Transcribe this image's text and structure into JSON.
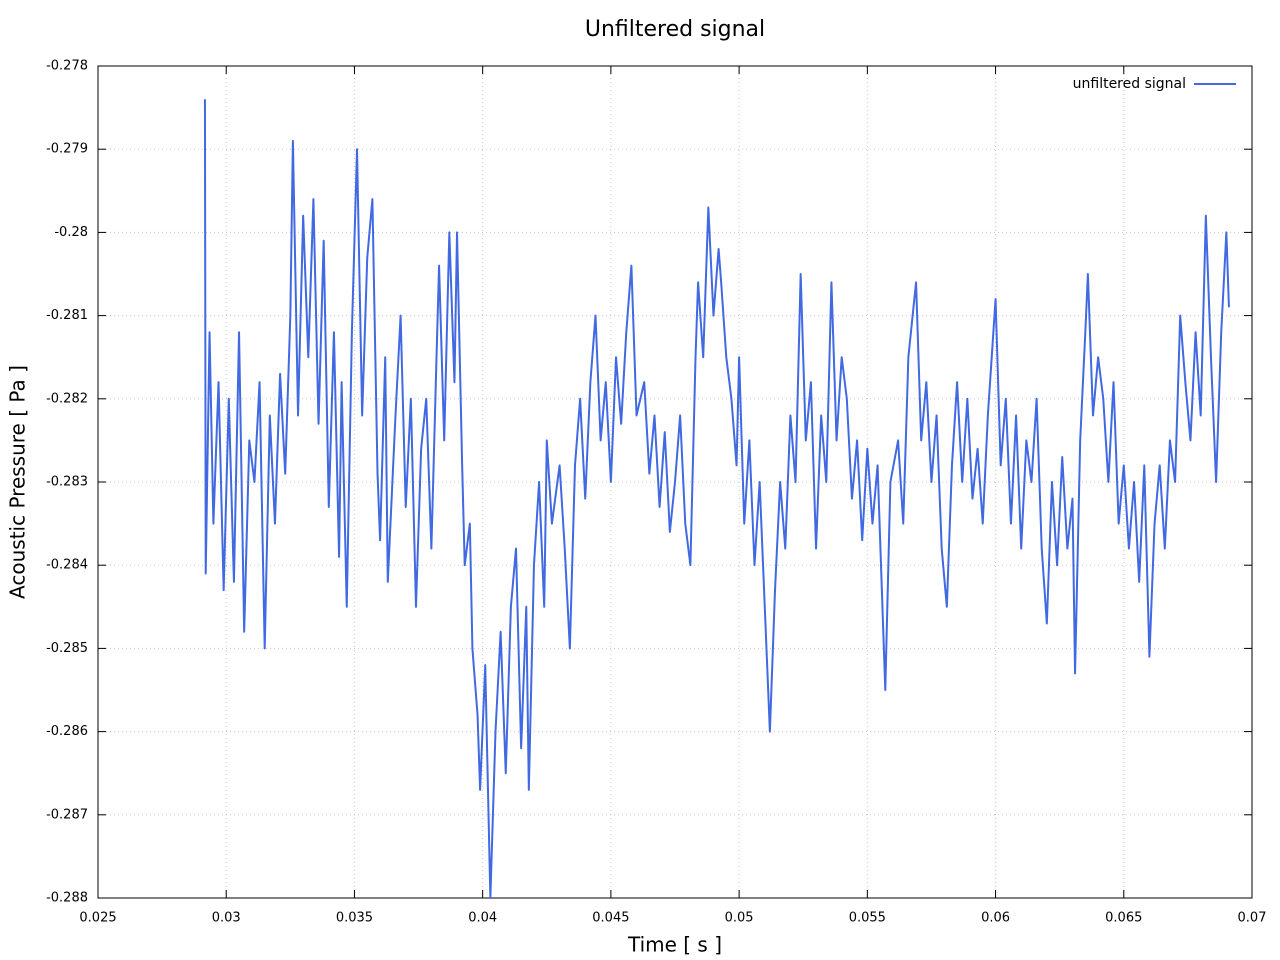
{
  "chart_data": {
    "type": "line",
    "title": "Unfiltered signal",
    "x_label": "Time [ s ]",
    "y_label": "Acoustic Pressure [ Pa ]",
    "xlim": [
      0.025,
      0.07
    ],
    "xticks": [
      0.025,
      0.03,
      0.035,
      0.04,
      0.045,
      0.05,
      0.055,
      0.06,
      0.065,
      0.07
    ],
    "ylim": [
      -0.288,
      -0.278
    ],
    "yticks": [
      -0.278,
      -0.279,
      -0.28,
      -0.281,
      -0.282,
      -0.283,
      -0.284,
      -0.285,
      -0.286,
      -0.287,
      -0.288
    ],
    "grid": true,
    "legend": "top right",
    "x": [
      0.02917,
      0.0292,
      0.02935,
      0.0295,
      0.0297,
      0.0299,
      0.0301,
      0.0303,
      0.0305,
      0.0307,
      0.0309,
      0.0311,
      0.0313,
      0.0315,
      0.0317,
      0.0319,
      0.0321,
      0.0323,
      0.0325,
      0.0326,
      0.0328,
      0.033,
      0.0332,
      0.0334,
      0.0336,
      0.0338,
      0.034,
      0.0342,
      0.0344,
      0.0345,
      0.0347,
      0.0349,
      0.0351,
      0.0353,
      0.0355,
      0.0357,
      0.0359,
      0.036,
      0.0362,
      0.0363,
      0.0366,
      0.0368,
      0.037,
      0.0372,
      0.0374,
      0.0376,
      0.0378,
      0.038,
      0.0382,
      0.0383,
      0.0385,
      0.0387,
      0.0389,
      0.039,
      0.0392,
      0.0393,
      0.0395,
      0.0396,
      0.0398,
      0.0399,
      0.0401,
      0.0403,
      0.0405,
      0.0407,
      0.0409,
      0.0411,
      0.0413,
      0.0415,
      0.0417,
      0.0418,
      0.042,
      0.0422,
      0.0424,
      0.0425,
      0.0427,
      0.043,
      0.0432,
      0.0434,
      0.0436,
      0.0438,
      0.044,
      0.0442,
      0.0444,
      0.0446,
      0.0448,
      0.045,
      0.0452,
      0.0454,
      0.0456,
      0.0458,
      0.046,
      0.0463,
      0.0465,
      0.0467,
      0.0469,
      0.0471,
      0.0473,
      0.0475,
      0.0477,
      0.0479,
      0.0481,
      0.0483,
      0.0484,
      0.0486,
      0.0488,
      0.049,
      0.0492,
      0.0493,
      0.0495,
      0.0497,
      0.0499,
      0.05,
      0.0502,
      0.0504,
      0.0506,
      0.0508,
      0.051,
      0.0512,
      0.0514,
      0.0516,
      0.0518,
      0.052,
      0.0522,
      0.0524,
      0.0526,
      0.0528,
      0.053,
      0.0532,
      0.0534,
      0.0536,
      0.0538,
      0.054,
      0.0542,
      0.0544,
      0.0546,
      0.0548,
      0.055,
      0.0552,
      0.0554,
      0.0557,
      0.0559,
      0.0562,
      0.0564,
      0.0566,
      0.0569,
      0.0571,
      0.0573,
      0.0575,
      0.0577,
      0.0579,
      0.0581,
      0.0583,
      0.0585,
      0.0587,
      0.0589,
      0.0591,
      0.0593,
      0.0595,
      0.0597,
      0.06,
      0.0602,
      0.0604,
      0.0606,
      0.0608,
      0.061,
      0.0612,
      0.0614,
      0.0616,
      0.0618,
      0.062,
      0.0622,
      0.0624,
      0.0626,
      0.0628,
      0.063,
      0.0631,
      0.0633,
      0.0635,
      0.0636,
      0.0638,
      0.064,
      0.0642,
      0.0644,
      0.0646,
      0.0648,
      0.065,
      0.0652,
      0.0654,
      0.0656,
      0.0658,
      0.066,
      0.0662,
      0.0664,
      0.0666,
      0.0668,
      0.067,
      0.0672,
      0.0674,
      0.0676,
      0.0678,
      0.068,
      0.0682,
      0.0684,
      0.0686,
      0.0688,
      0.069,
      0.0691
    ],
    "series": [
      {
        "name": "unfiltered signal",
        "color": "#4169e1",
        "values": [
          -0.2784,
          -0.2841,
          -0.2812,
          -0.2835,
          -0.2818,
          -0.2843,
          -0.282,
          -0.2842,
          -0.2812,
          -0.2848,
          -0.2825,
          -0.283,
          -0.2818,
          -0.285,
          -0.2822,
          -0.2835,
          -0.2817,
          -0.2829,
          -0.281,
          -0.2789,
          -0.2822,
          -0.2798,
          -0.2815,
          -0.2796,
          -0.2823,
          -0.2801,
          -0.2833,
          -0.2812,
          -0.2839,
          -0.2818,
          -0.2845,
          -0.2812,
          -0.279,
          -0.2822,
          -0.2803,
          -0.2796,
          -0.2829,
          -0.2837,
          -0.2815,
          -0.2842,
          -0.2822,
          -0.281,
          -0.2833,
          -0.282,
          -0.2845,
          -0.2826,
          -0.282,
          -0.2838,
          -0.2815,
          -0.2804,
          -0.2825,
          -0.28,
          -0.2818,
          -0.28,
          -0.2828,
          -0.284,
          -0.2835,
          -0.285,
          -0.2858,
          -0.2867,
          -0.2852,
          -0.288,
          -0.286,
          -0.2848,
          -0.2865,
          -0.2845,
          -0.2838,
          -0.2862,
          -0.2845,
          -0.2867,
          -0.284,
          -0.283,
          -0.2845,
          -0.2825,
          -0.2835,
          -0.2828,
          -0.2838,
          -0.285,
          -0.2828,
          -0.282,
          -0.2832,
          -0.2818,
          -0.281,
          -0.2825,
          -0.2818,
          -0.283,
          -0.2815,
          -0.2823,
          -0.2812,
          -0.2804,
          -0.2822,
          -0.2818,
          -0.2829,
          -0.2822,
          -0.2833,
          -0.2824,
          -0.2836,
          -0.283,
          -0.2822,
          -0.2835,
          -0.284,
          -0.2815,
          -0.2806,
          -0.2815,
          -0.2797,
          -0.281,
          -0.2802,
          -0.2806,
          -0.2815,
          -0.282,
          -0.2828,
          -0.2815,
          -0.2835,
          -0.2825,
          -0.284,
          -0.283,
          -0.2845,
          -0.286,
          -0.2843,
          -0.283,
          -0.2838,
          -0.2822,
          -0.283,
          -0.2805,
          -0.2825,
          -0.2818,
          -0.2838,
          -0.2822,
          -0.283,
          -0.2806,
          -0.2825,
          -0.2815,
          -0.282,
          -0.2832,
          -0.2825,
          -0.2837,
          -0.2826,
          -0.2835,
          -0.2828,
          -0.2855,
          -0.283,
          -0.2825,
          -0.2835,
          -0.2815,
          -0.2806,
          -0.2825,
          -0.2818,
          -0.283,
          -0.2822,
          -0.2838,
          -0.2845,
          -0.2828,
          -0.2818,
          -0.283,
          -0.282,
          -0.2832,
          -0.2826,
          -0.2835,
          -0.2822,
          -0.2808,
          -0.2828,
          -0.282,
          -0.2835,
          -0.2822,
          -0.2838,
          -0.2825,
          -0.283,
          -0.282,
          -0.2838,
          -0.2847,
          -0.283,
          -0.284,
          -0.2827,
          -0.2838,
          -0.2832,
          -0.2853,
          -0.2825,
          -0.2812,
          -0.2805,
          -0.2822,
          -0.2815,
          -0.282,
          -0.283,
          -0.2818,
          -0.2835,
          -0.2828,
          -0.2838,
          -0.283,
          -0.2842,
          -0.2828,
          -0.2851,
          -0.2835,
          -0.2828,
          -0.2838,
          -0.2825,
          -0.283,
          -0.281,
          -0.2818,
          -0.2825,
          -0.2812,
          -0.2822,
          -0.2798,
          -0.2815,
          -0.283,
          -0.2812,
          -0.28,
          -0.2809
        ]
      }
    ]
  }
}
